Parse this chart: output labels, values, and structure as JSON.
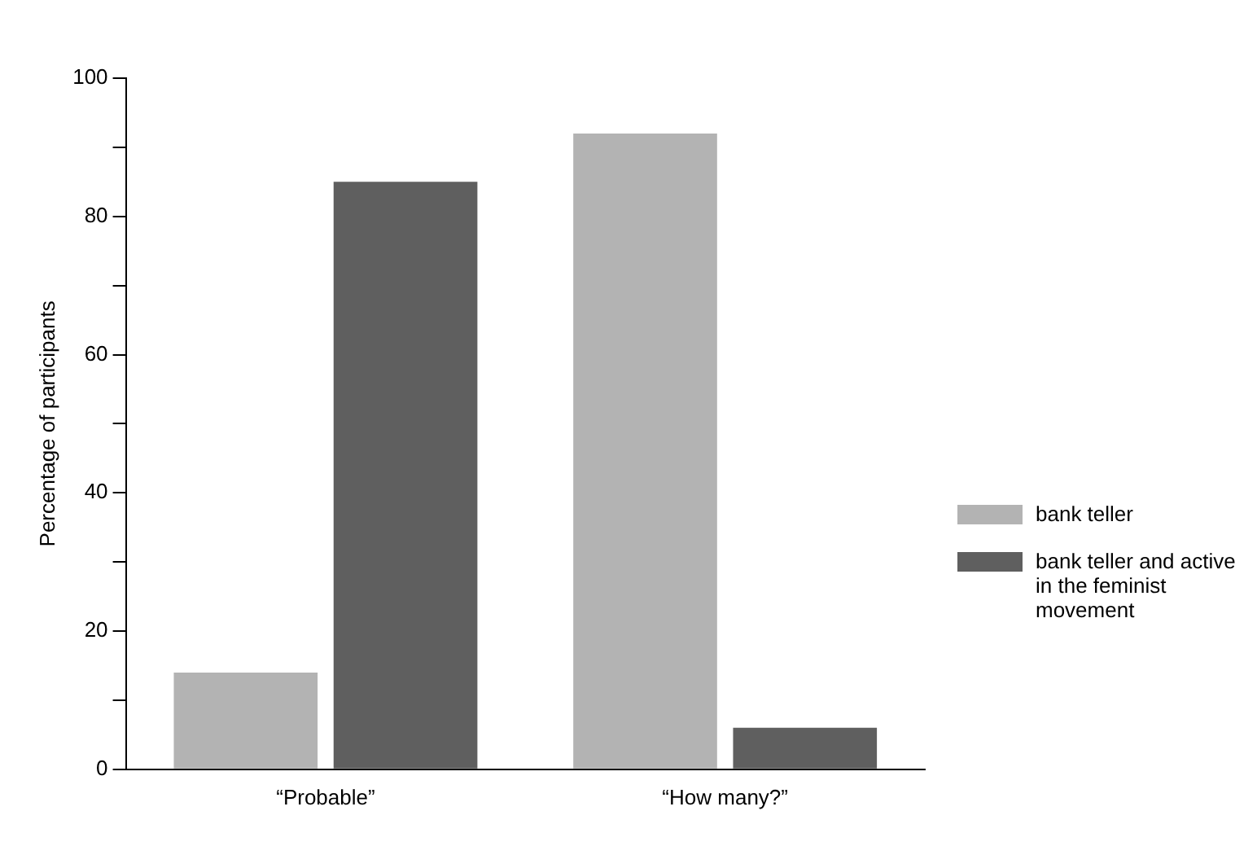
{
  "chart_data": {
    "type": "bar",
    "ylabel": "Percentage of participants",
    "categories": [
      "“Probable”",
      "“How many?”"
    ],
    "series": [
      {
        "name": "bank teller",
        "color": "#b3b3b3",
        "values": [
          14,
          92
        ]
      },
      {
        "name": "bank teller and active in the feminist movement",
        "color": "#5f5f5f",
        "values": [
          85,
          6
        ]
      }
    ],
    "ylim": [
      0,
      100
    ],
    "yticks": [
      0,
      {
        "value": 10,
        "label": null
      },
      20,
      {
        "value": 30,
        "label": null
      },
      40,
      {
        "value": 50,
        "label": null
      },
      60,
      {
        "value": 70,
        "label": null
      },
      80,
      {
        "value": 90,
        "label": null
      },
      100
    ],
    "grid": false,
    "legend": "right"
  }
}
